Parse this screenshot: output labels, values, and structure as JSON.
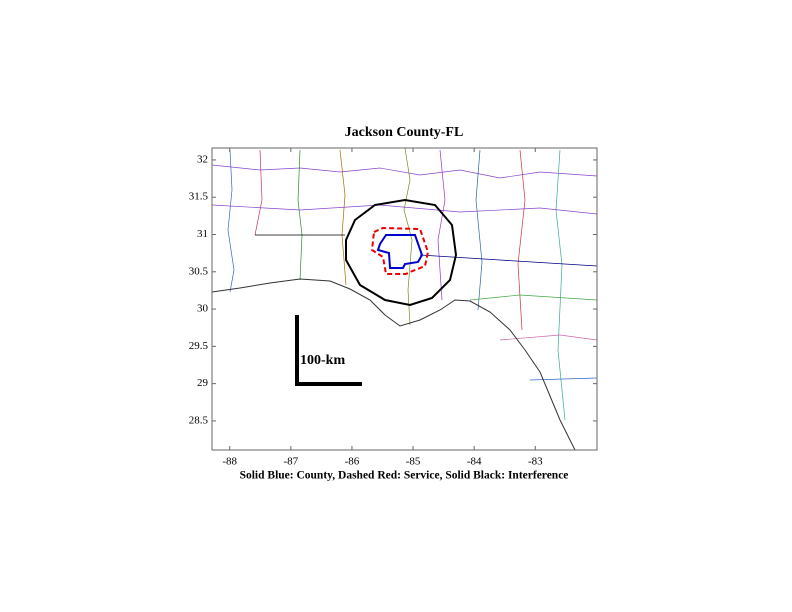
{
  "map": {
    "title": "Jackson County-FL",
    "caption": "Solid Blue: County, Dashed Red: Service, Solid Black: Interference",
    "scale_label": "100-km",
    "xlim": [
      -88.29,
      -81.99
    ],
    "ylim": [
      28.11,
      32.16
    ],
    "xticks": [
      -88,
      -87,
      -86,
      -85,
      -84,
      -83
    ],
    "yticks": [
      28.5,
      29,
      29.5,
      30,
      30.5,
      31,
      31.5,
      32
    ]
  }
}
